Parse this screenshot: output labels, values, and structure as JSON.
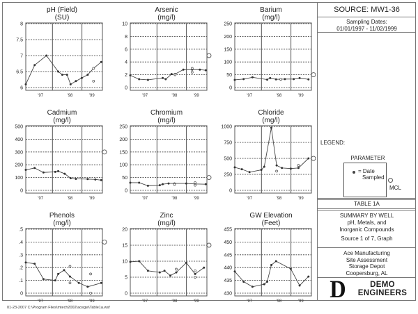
{
  "footer": {
    "text": "01-23-2007  C:\\Program Files\\mtech2002\\acegw\\Table1a.wsf"
  },
  "side_panel": {
    "source": "SOURCE: MW1-36",
    "sampling_label": "Sampling Dates:",
    "sampling_range": "01/01/1997 - 11/02/1999",
    "legend_label": "LEGEND:",
    "legend_parameter": "PARAMETER",
    "legend_date_line1": "= Date",
    "legend_date_line2": "Sampled",
    "legend_mcl": "MCL",
    "table_title": "TABLE 1A",
    "summary_line1": "SUMMARY BY WELL",
    "summary_line2": "pH, Metals, and",
    "summary_line3": "Inorganic Compounds",
    "summary_source": "Source 1 of 7, Graph",
    "site_line1": "Ace Manufacturing",
    "site_line2": "Site Assessment",
    "site_line3": "Storage Depot",
    "site_line4": "Coopersburg, AL",
    "logo_letter": "D",
    "logo_line1": "DEMO",
    "logo_line2": "ENGINEERS"
  },
  "chart_data": [
    {
      "type": "line",
      "title": "pH (Field)",
      "unit": "(SU)",
      "ylim": [
        6,
        8
      ],
      "yticks": [
        6,
        6.5,
        7,
        7.5,
        8
      ],
      "ytick_labels": [
        "6",
        "6.5",
        "7",
        "7.5",
        "8"
      ],
      "xtick_labels": [
        "'97",
        "'98",
        "'99"
      ],
      "grid": true,
      "mcl": null,
      "series": [
        {
          "name": "measured",
          "x": [
            0.0,
            0.15,
            0.35,
            0.55,
            0.62,
            0.7,
            0.76,
            0.85,
            0.95,
            1.05,
            1.15,
            1.28
          ],
          "y": [
            6.1,
            6.7,
            7.0,
            6.5,
            6.4,
            6.4,
            6.1,
            6.2,
            6.3,
            6.4,
            6.6,
            6.8
          ]
        }
      ],
      "extra_points": [
        {
          "x": 1.15,
          "y": 6.6
        },
        {
          "x": 1.15,
          "y": 6.2
        }
      ]
    },
    {
      "type": "line",
      "title": "Arsenic",
      "unit": "(mg/l)",
      "ylim": [
        0,
        10
      ],
      "yticks": [
        0,
        2,
        4,
        6,
        8,
        10
      ],
      "ytick_labels": [
        "0",
        "2",
        "4",
        "6",
        "8",
        "10"
      ],
      "xtick_labels": [
        "'97",
        "'98",
        "'99"
      ],
      "grid": true,
      "mcl": 5,
      "series": [
        {
          "name": "measured",
          "x": [
            0.0,
            0.15,
            0.3,
            0.55,
            0.6,
            0.7,
            0.76,
            0.9,
            1.05,
            1.18,
            1.28
          ],
          "y": [
            1.9,
            1.3,
            1.2,
            1.5,
            1.3,
            2.1,
            2.1,
            2.8,
            2.8,
            2.8,
            2.7
          ]
        }
      ],
      "extra_points": [
        {
          "x": 0.76,
          "y": 2.0
        },
        {
          "x": 1.05,
          "y": 3.0
        },
        {
          "x": 1.05,
          "y": 2.4
        }
      ]
    },
    {
      "type": "line",
      "title": "Barium",
      "unit": "(mg/l)",
      "ylim": [
        0,
        250
      ],
      "yticks": [
        0,
        50,
        100,
        150,
        200,
        250
      ],
      "ytick_labels": [
        "0",
        "50",
        "100",
        "150",
        "200",
        "250"
      ],
      "xtick_labels": [
        "'97",
        "'98",
        "'99"
      ],
      "grid": true,
      "mcl": 50,
      "series": [
        {
          "name": "measured",
          "x": [
            0.0,
            0.15,
            0.3,
            0.55,
            0.6,
            0.7,
            0.85,
            1.0,
            1.1,
            1.25
          ],
          "y": [
            30,
            33,
            40,
            31,
            37,
            32,
            33,
            33,
            37,
            32
          ]
        }
      ],
      "extra_points": [
        {
          "x": 0.78,
          "y": 32
        }
      ]
    },
    {
      "type": "line",
      "title": "Cadmium",
      "unit": "(mg/l)",
      "ylim": [
        0,
        500
      ],
      "yticks": [
        0,
        100,
        200,
        300,
        400,
        500
      ],
      "ytick_labels": [
        "0",
        "100",
        "200",
        "300",
        "400",
        "500"
      ],
      "xtick_labels": [
        "'97",
        "'98",
        "'99"
      ],
      "grid": true,
      "mcl": 300,
      "series": [
        {
          "name": "measured",
          "x": [
            0.0,
            0.15,
            0.3,
            0.5,
            0.55,
            0.66,
            0.76,
            0.85,
            1.05,
            1.18,
            1.28
          ],
          "y": [
            160,
            175,
            140,
            145,
            150,
            130,
            95,
            90,
            88,
            85,
            80
          ]
        }
      ],
      "extra_points": []
    },
    {
      "type": "line",
      "title": "Chromium",
      "unit": "(mg/l)",
      "ylim": [
        0,
        250
      ],
      "yticks": [
        0,
        50,
        100,
        150,
        200,
        250
      ],
      "ytick_labels": [
        "0",
        "50",
        "100",
        "150",
        "200",
        "250"
      ],
      "xtick_labels": [
        "'97",
        "'98",
        "'99"
      ],
      "grid": true,
      "mcl": 50,
      "series": [
        {
          "name": "measured",
          "x": [
            0.0,
            0.15,
            0.3,
            0.5,
            0.55,
            0.65,
            0.75,
            0.95,
            1.1,
            1.28
          ],
          "y": [
            30,
            30,
            18,
            20,
            24,
            27,
            27,
            27,
            25,
            24
          ]
        }
      ],
      "extra_points": [
        {
          "x": 0.75,
          "y": 23
        },
        {
          "x": 1.1,
          "y": 20
        },
        {
          "x": 1.1,
          "y": 30
        }
      ]
    },
    {
      "type": "line",
      "title": "Chloride",
      "unit": "(mg/l)",
      "ylim": [
        0,
        1000
      ],
      "yticks": [
        0,
        250,
        500,
        750,
        1000
      ],
      "ytick_labels": [
        "0",
        "250",
        "500",
        "750",
        "1000"
      ],
      "xtick_labels": [
        "'97",
        "'98",
        "'99"
      ],
      "grid": true,
      "mcl": 500,
      "series": [
        {
          "name": "measured",
          "x": [
            0.0,
            0.12,
            0.25,
            0.45,
            0.5,
            0.62,
            0.71,
            0.8,
            0.95,
            1.08,
            1.25
          ],
          "y": [
            360,
            330,
            285,
            320,
            370,
            980,
            390,
            350,
            340,
            350,
            500
          ]
        }
      ],
      "extra_points": [
        {
          "x": 0.71,
          "y": 300
        },
        {
          "x": 1.08,
          "y": 390
        }
      ]
    },
    {
      "type": "line",
      "title": "Phenols",
      "unit": "(mg/l)",
      "ylim": [
        0,
        0.5
      ],
      "yticks": [
        0,
        0.1,
        0.2,
        0.3,
        0.4,
        0.5
      ],
      "ytick_labels": [
        "0",
        ".1",
        ".2",
        ".3",
        ".4",
        ".5"
      ],
      "xtick_labels": [
        "'97",
        "'98",
        "'99"
      ],
      "grid": true,
      "mcl": 0.4,
      "series": [
        {
          "name": "measured",
          "x": [
            0.0,
            0.15,
            0.3,
            0.5,
            0.55,
            0.65,
            0.75,
            0.9,
            1.05,
            1.28
          ],
          "y": [
            0.24,
            0.23,
            0.11,
            0.1,
            0.15,
            0.18,
            0.13,
            0.08,
            0.05,
            0.08
          ]
        }
      ],
      "extra_points": [
        {
          "x": 0.75,
          "y": 0.21
        },
        {
          "x": 0.75,
          "y": 0.08
        },
        {
          "x": 1.1,
          "y": 0.15
        },
        {
          "x": 1.1,
          "y": 0.0
        }
      ]
    },
    {
      "type": "line",
      "title": "Zinc",
      "unit": "(mg/l)",
      "ylim": [
        0,
        20
      ],
      "yticks": [
        0,
        5,
        10,
        15,
        20
      ],
      "ytick_labels": [
        "0",
        "5",
        "10",
        "15",
        "20"
      ],
      "xtick_labels": [
        "'97",
        "'98",
        "'99"
      ],
      "grid": true,
      "mcl": 15,
      "series": [
        {
          "name": "measured",
          "x": [
            0.0,
            0.15,
            0.3,
            0.5,
            0.58,
            0.68,
            0.78,
            0.95,
            1.1,
            1.25
          ],
          "y": [
            9.8,
            10.0,
            7.0,
            6.5,
            7.0,
            5.5,
            6.5,
            9.5,
            6.0,
            8.0
          ]
        }
      ],
      "extra_points": [
        {
          "x": 0.78,
          "y": 7.5
        },
        {
          "x": 1.1,
          "y": 7.0
        },
        {
          "x": 1.1,
          "y": 5.0
        }
      ]
    },
    {
      "type": "line",
      "title": "GW Elevation",
      "unit": "(Feet)",
      "ylim": [
        430,
        455
      ],
      "yticks": [
        430,
        435,
        440,
        445,
        450,
        455
      ],
      "ytick_labels": [
        "430",
        "435",
        "440",
        "445",
        "450",
        "455"
      ],
      "xtick_labels": [
        "'97",
        "'98",
        "'99"
      ],
      "grid": true,
      "mcl": null,
      "series": [
        {
          "name": "measured",
          "x": [
            0.0,
            0.15,
            0.3,
            0.5,
            0.55,
            0.62,
            0.7,
            0.95,
            1.1,
            1.25
          ],
          "y": [
            438.5,
            434.5,
            432.5,
            433.5,
            434.5,
            441,
            442.5,
            439.5,
            433,
            436.5
          ]
        }
      ],
      "extra_points": []
    }
  ]
}
